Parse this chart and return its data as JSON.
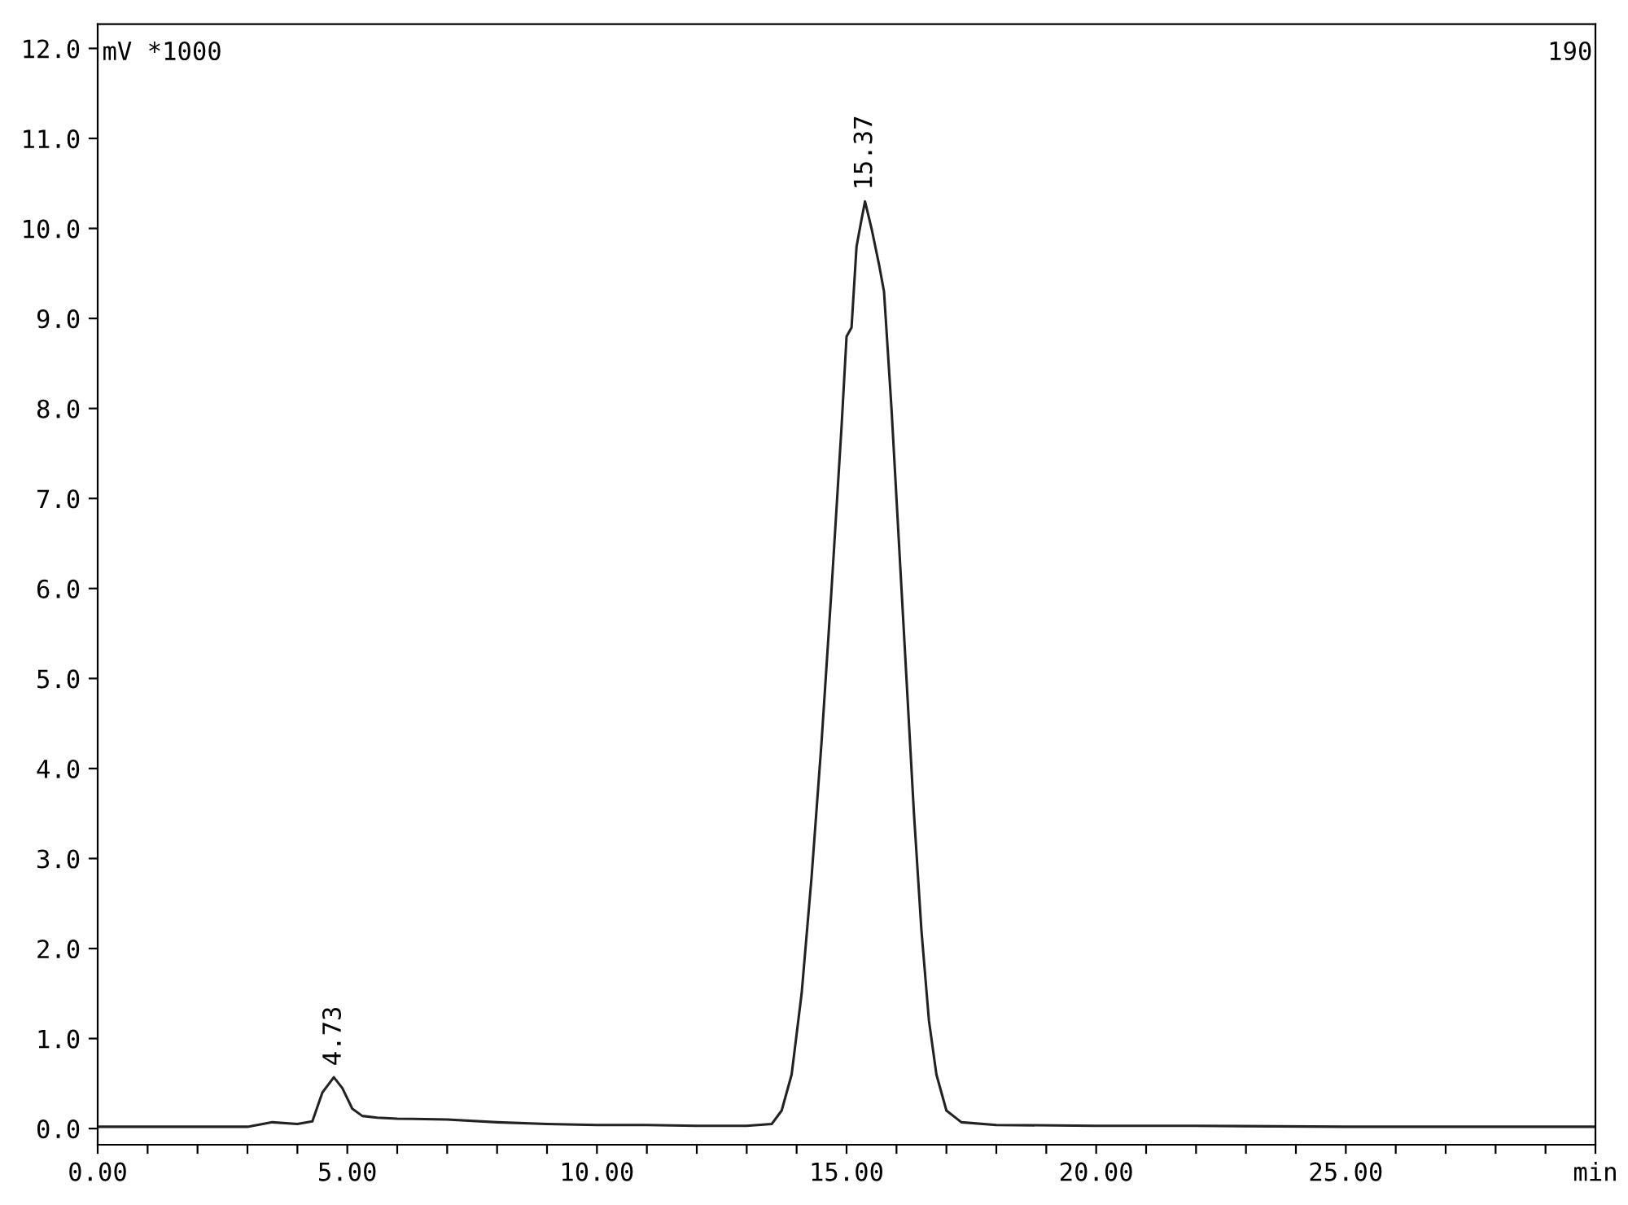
{
  "chart_data": {
    "type": "line",
    "ylabel": "mV *1000",
    "annotations": [
      {
        "text": "4.73",
        "x": 4.73,
        "y": 0.57
      },
      {
        "text": "15.37",
        "x": 15.37,
        "y": 10.3
      },
      "190"
    ],
    "x": [
      0,
      1,
      2,
      3,
      3.5,
      4.0,
      4.3,
      4.5,
      4.73,
      4.9,
      5.1,
      5.3,
      5.6,
      6.0,
      7.0,
      8.0,
      9.0,
      10.0,
      11.0,
      12.0,
      13.0,
      13.5,
      13.7,
      13.9,
      14.1,
      14.3,
      14.5,
      14.7,
      14.9,
      15.0,
      15.1,
      15.2,
      15.3,
      15.37,
      15.5,
      15.65,
      15.75,
      15.9,
      16.05,
      16.2,
      16.35,
      16.5,
      16.65,
      16.8,
      17.0,
      17.3,
      18,
      20,
      22,
      25,
      28,
      30
    ],
    "series": [
      {
        "color": "#222222",
        "values": [
          0.02,
          0.02,
          0.02,
          0.02,
          0.07,
          0.05,
          0.08,
          0.4,
          0.57,
          0.45,
          0.22,
          0.14,
          0.12,
          0.11,
          0.1,
          0.07,
          0.05,
          0.04,
          0.04,
          0.03,
          0.03,
          0.05,
          0.2,
          0.6,
          1.5,
          2.8,
          4.3,
          6.0,
          7.8,
          8.8,
          8.9,
          9.8,
          10.1,
          10.3,
          10.0,
          9.6,
          9.3,
          8.0,
          6.5,
          5.0,
          3.5,
          2.2,
          1.2,
          0.6,
          0.2,
          0.07,
          0.04,
          0.03,
          0.03,
          0.02,
          0.02,
          0.02
        ]
      }
    ],
    "xlim": [
      0,
      30
    ],
    "ylim": [
      -0.18,
      12.27
    ],
    "xticks": [
      {
        "value": 0,
        "label": "0.00"
      },
      {
        "value": 1,
        "label": null
      },
      {
        "value": 2,
        "label": null
      },
      {
        "value": 3,
        "label": null
      },
      {
        "value": 4,
        "label": null
      },
      {
        "value": 5,
        "label": "5.00"
      },
      {
        "value": 6,
        "label": null
      },
      {
        "value": 7,
        "label": null
      },
      {
        "value": 8,
        "label": null
      },
      {
        "value": 9,
        "label": null
      },
      {
        "value": 10,
        "label": "10.00"
      },
      {
        "value": 11,
        "label": null
      },
      {
        "value": 12,
        "label": null
      },
      {
        "value": 13,
        "label": null
      },
      {
        "value": 14,
        "label": null
      },
      {
        "value": 15,
        "label": "15.00"
      },
      {
        "value": 16,
        "label": null
      },
      {
        "value": 17,
        "label": null
      },
      {
        "value": 18,
        "label": null
      },
      {
        "value": 19,
        "label": null
      },
      {
        "value": 20,
        "label": "20.00"
      },
      {
        "value": 21,
        "label": null
      },
      {
        "value": 22,
        "label": null
      },
      {
        "value": 23,
        "label": null
      },
      {
        "value": 24,
        "label": null
      },
      {
        "value": 25,
        "label": "25.00"
      },
      {
        "value": 26,
        "label": null
      },
      {
        "value": 27,
        "label": null
      },
      {
        "value": 28,
        "label": null
      },
      {
        "value": 29,
        "label": null
      },
      {
        "value": 30,
        "label": "min"
      }
    ],
    "yticks": [
      {
        "value": 0,
        "label": "0.0"
      },
      {
        "value": 1,
        "label": "1.0"
      },
      {
        "value": 2,
        "label": "2.0"
      },
      {
        "value": 3,
        "label": "3.0"
      },
      {
        "value": 4,
        "label": "4.0"
      },
      {
        "value": 5,
        "label": "5.0"
      },
      {
        "value": 6,
        "label": "6.0"
      },
      {
        "value": 7,
        "label": "7.0"
      },
      {
        "value": 8,
        "label": "8.0"
      },
      {
        "value": 9,
        "label": "9.0"
      },
      {
        "value": 10,
        "label": "10.0"
      },
      {
        "value": 11,
        "label": "11.0"
      },
      {
        "value": 12,
        "label": "12.0"
      }
    ],
    "grid": false,
    "legend": false,
    "marker": "none",
    "line_style": "solid"
  }
}
